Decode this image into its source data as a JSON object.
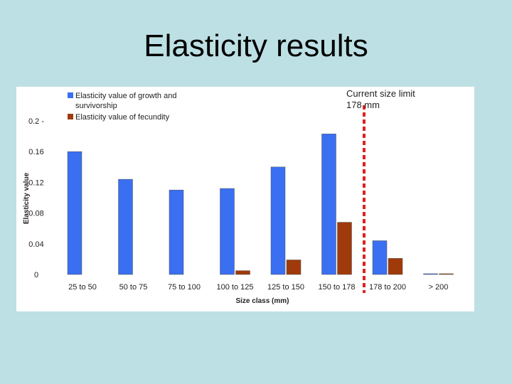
{
  "slide": {
    "title": "Elasticity results"
  },
  "note": {
    "line1": "Current size limit",
    "line2": "178 mm"
  },
  "colors": {
    "growth": "#3a6ff2",
    "fecundity": "#a03a0a",
    "limit_line": "#e02020",
    "background": "#bde0e4"
  },
  "chart_data": {
    "type": "bar",
    "categories": [
      "25 to 50",
      "50 to 75",
      "75 to 100",
      "100 to 125",
      "125 to 150",
      "150 to 178",
      "178 to 200",
      "> 200"
    ],
    "series": [
      {
        "name": "Elasticity value of growth and survivorship",
        "values": [
          0.16,
          0.124,
          0.11,
          0.112,
          0.14,
          0.183,
          0.044,
          0.001
        ]
      },
      {
        "name": "Elasticity value of fecundity",
        "values": [
          0,
          0,
          0,
          0.005,
          0.019,
          0.068,
          0.021,
          0.001
        ]
      }
    ],
    "xlabel": "Size class (mm)",
    "ylabel": "Elasticity value",
    "ylim": [
      0,
      0.2
    ],
    "yticks": [
      "0",
      "0.04",
      "0.08",
      "0.12",
      "0.16",
      "0.2 -"
    ],
    "legend": {
      "placement": "top-left",
      "growth_line1": "Elasticity value of growth and",
      "growth_line2": "survivorship",
      "fecundity": "Elasticity value of fecundity"
    },
    "annotation": {
      "text": "Current size limit 178 mm",
      "at_x": 178,
      "style": "dashed vertical line between 150 to 178 and 178 to 200"
    },
    "grid": false
  }
}
